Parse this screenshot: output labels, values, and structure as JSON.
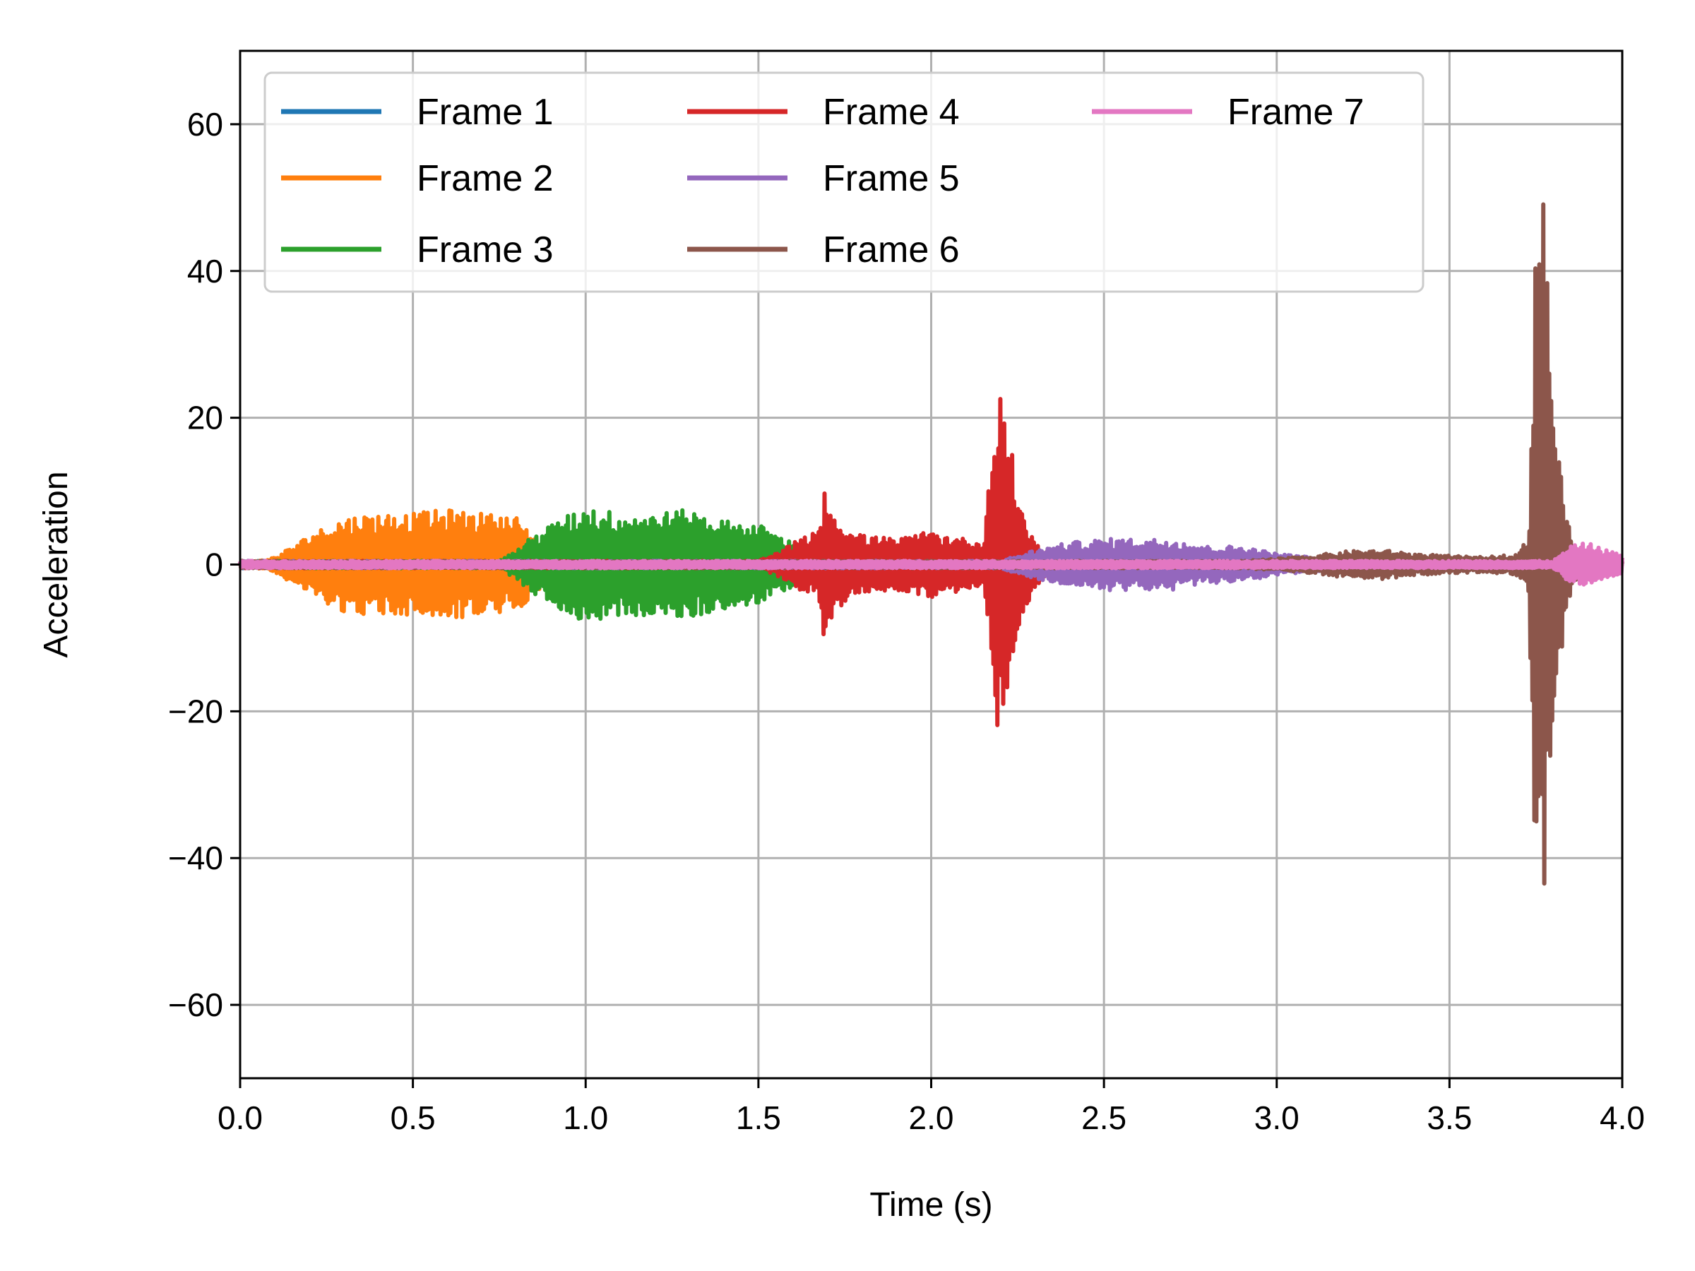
{
  "chart_data": {
    "type": "line",
    "xlabel": "Time (s)",
    "ylabel": "Acceleration",
    "xlim": [
      0.0,
      4.0
    ],
    "ylim": [
      -70,
      70
    ],
    "xticks": [
      0.0,
      0.5,
      1.0,
      1.5,
      2.0,
      2.5,
      3.0,
      3.5,
      4.0
    ],
    "xtick_labels": [
      "0.0",
      "0.5",
      "1.0",
      "1.5",
      "2.0",
      "2.5",
      "3.0",
      "3.5",
      "4.0"
    ],
    "yticks": [
      -60,
      -40,
      -20,
      0,
      20,
      40,
      60
    ],
    "ytick_labels": [
      "−60",
      "−40",
      "−20",
      "0",
      "20",
      "40",
      "60"
    ],
    "grid": true,
    "legend": {
      "placement": "top-left",
      "columns": 3
    },
    "series": [
      {
        "name": "Frame 1",
        "color": "#1f77b4",
        "envelope_points": [
          [
            0.0,
            0.5
          ],
          [
            0.5,
            0.5
          ],
          [
            1.0,
            0.5
          ],
          [
            1.5,
            0.5
          ],
          [
            2.0,
            0.5
          ],
          [
            2.5,
            0.5
          ],
          [
            3.0,
            0.5
          ],
          [
            3.5,
            0.5
          ],
          [
            4.0,
            0.5
          ]
        ]
      },
      {
        "name": "Frame 2",
        "color": "#ff7f0e",
        "envelope_points": [
          [
            0.0,
            0.3
          ],
          [
            0.05,
            0.5
          ],
          [
            0.1,
            1.0
          ],
          [
            0.15,
            2.5
          ],
          [
            0.2,
            4.0
          ],
          [
            0.3,
            6.5
          ],
          [
            0.4,
            7.0
          ],
          [
            0.5,
            7.0
          ],
          [
            0.6,
            7.5
          ],
          [
            0.7,
            7.0
          ],
          [
            0.8,
            6.5
          ],
          [
            0.85,
            4.0
          ],
          [
            0.9,
            2.0
          ],
          [
            1.0,
            0.5
          ],
          [
            1.5,
            0.5
          ],
          [
            4.0,
            0.5
          ]
        ]
      },
      {
        "name": "Frame 3",
        "color": "#2ca02c",
        "envelope_points": [
          [
            0.0,
            0.5
          ],
          [
            0.75,
            0.5
          ],
          [
            0.8,
            2.0
          ],
          [
            0.85,
            4.0
          ],
          [
            0.9,
            5.5
          ],
          [
            1.0,
            8.0
          ],
          [
            1.1,
            7.0
          ],
          [
            1.2,
            7.0
          ],
          [
            1.3,
            7.5
          ],
          [
            1.4,
            6.0
          ],
          [
            1.5,
            5.5
          ],
          [
            1.6,
            3.0
          ],
          [
            1.7,
            1.0
          ],
          [
            1.8,
            0.5
          ],
          [
            4.0,
            0.5
          ]
        ]
      },
      {
        "name": "Frame 4",
        "color": "#d62728",
        "envelope_points": [
          [
            0.0,
            0.5
          ],
          [
            1.5,
            0.5
          ],
          [
            1.55,
            1.5
          ],
          [
            1.6,
            3.0
          ],
          [
            1.67,
            4.5
          ],
          [
            1.69,
            10.0
          ],
          [
            1.75,
            5.0
          ],
          [
            1.8,
            4.0
          ],
          [
            1.9,
            3.5
          ],
          [
            2.0,
            4.5
          ],
          [
            2.15,
            3.0
          ],
          [
            2.2,
            26.0
          ],
          [
            2.23,
            16.0
          ],
          [
            2.27,
            6.0
          ],
          [
            2.32,
            2.0
          ],
          [
            2.4,
            0.8
          ],
          [
            2.5,
            0.5
          ],
          [
            4.0,
            0.5
          ]
        ]
      },
      {
        "name": "Frame 5",
        "color": "#9467bd",
        "envelope_points": [
          [
            0.0,
            0.5
          ],
          [
            2.2,
            0.5
          ],
          [
            2.3,
            2.0
          ],
          [
            2.4,
            3.0
          ],
          [
            2.5,
            3.5
          ],
          [
            2.6,
            3.5
          ],
          [
            2.7,
            3.5
          ],
          [
            2.8,
            2.5
          ],
          [
            2.9,
            2.5
          ],
          [
            3.0,
            1.5
          ],
          [
            3.1,
            1.0
          ],
          [
            3.2,
            0.5
          ],
          [
            4.0,
            0.5
          ]
        ]
      },
      {
        "name": "Frame 6",
        "color": "#8c564b",
        "envelope_points": [
          [
            0.0,
            0.5
          ],
          [
            2.9,
            0.5
          ],
          [
            3.0,
            0.8
          ],
          [
            3.1,
            1.2
          ],
          [
            3.2,
            1.8
          ],
          [
            3.3,
            2.0
          ],
          [
            3.4,
            1.5
          ],
          [
            3.5,
            1.2
          ],
          [
            3.6,
            1.0
          ],
          [
            3.7,
            1.5
          ],
          [
            3.73,
            4.0
          ],
          [
            3.75,
            50.0
          ],
          [
            3.77,
            52.0
          ],
          [
            3.79,
            35.0
          ],
          [
            3.81,
            18.0
          ],
          [
            3.84,
            6.0
          ],
          [
            3.87,
            1.5
          ],
          [
            3.9,
            0.5
          ],
          [
            4.0,
            0.5
          ]
        ]
      },
      {
        "name": "Frame 7",
        "color": "#e377c2",
        "envelope_points": [
          [
            0.0,
            0.5
          ],
          [
            3.8,
            0.5
          ],
          [
            3.85,
            2.5
          ],
          [
            3.9,
            3.0
          ],
          [
            3.95,
            2.0
          ],
          [
            4.0,
            1.5
          ]
        ]
      }
    ]
  }
}
